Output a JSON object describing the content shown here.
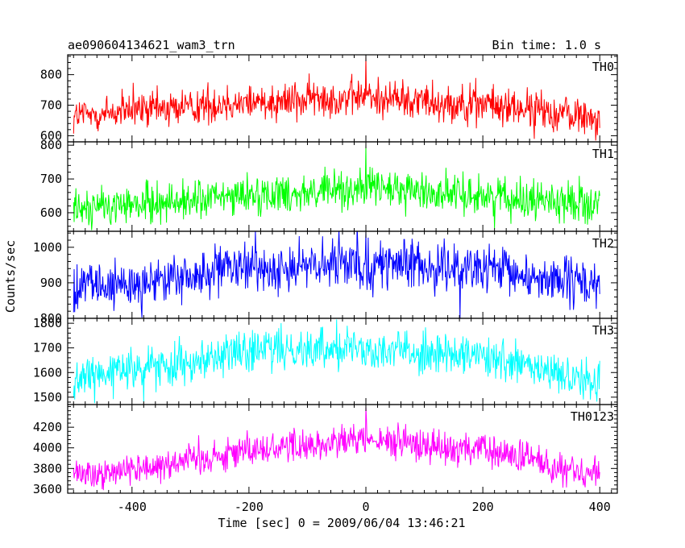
{
  "header": {
    "title": "ae090604134621_wam3_trn",
    "bin_time": "Bin time: 1.0 s"
  },
  "chart_data": {
    "type": "line",
    "xlabel": "Time [sec] 0 = 2009/06/04 13:46:21",
    "ylabel": "Counts/sec",
    "xlim": [
      -510,
      430
    ],
    "x_ticks": [
      -400,
      -200,
      0,
      200,
      400
    ],
    "x_range": [
      -500,
      400
    ],
    "bin_time_s": 1.0,
    "panels": [
      {
        "name": "TH0",
        "color": "#ff0000",
        "ylim": [
          580,
          865
        ],
        "y_ticks": [
          600,
          700,
          800
        ],
        "trend": [
          {
            "x": -500,
            "y": 665
          },
          {
            "x": -400,
            "y": 680
          },
          {
            "x": -200,
            "y": 712
          },
          {
            "x": 0,
            "y": 728
          },
          {
            "x": 200,
            "y": 702
          },
          {
            "x": 400,
            "y": 660
          }
        ],
        "noise_amplitude": 42,
        "peak": {
          "x": 0,
          "y": 860
        }
      },
      {
        "name": "TH1",
        "color": "#00ff00",
        "ylim": [
          545,
          810
        ],
        "y_ticks": [
          600,
          700,
          800
        ],
        "trend": [
          {
            "x": -500,
            "y": 612
          },
          {
            "x": -400,
            "y": 622
          },
          {
            "x": -200,
            "y": 652
          },
          {
            "x": 0,
            "y": 672
          },
          {
            "x": 200,
            "y": 652
          },
          {
            "x": 400,
            "y": 625
          }
        ],
        "noise_amplitude": 38,
        "peak": {
          "x": 0,
          "y": 800
        }
      },
      {
        "name": "TH2",
        "color": "#0000ff",
        "ylim": [
          800,
          1045
        ],
        "y_ticks": [
          800,
          900,
          1000
        ],
        "trend": [
          {
            "x": -500,
            "y": 880
          },
          {
            "x": -400,
            "y": 895
          },
          {
            "x": -200,
            "y": 940
          },
          {
            "x": 0,
            "y": 955
          },
          {
            "x": 200,
            "y": 935
          },
          {
            "x": 400,
            "y": 890
          }
        ],
        "noise_amplitude": 45,
        "peak": {
          "x": 0,
          "y": 1045
        }
      },
      {
        "name": "TH3",
        "color": "#00ffff",
        "ylim": [
          1470,
          1820
        ],
        "y_ticks": [
          1500,
          1600,
          1700,
          1800
        ],
        "trend": [
          {
            "x": -500,
            "y": 1570
          },
          {
            "x": -400,
            "y": 1610
          },
          {
            "x": -200,
            "y": 1690
          },
          {
            "x": 0,
            "y": 1705
          },
          {
            "x": 200,
            "y": 1660
          },
          {
            "x": 400,
            "y": 1560
          }
        ],
        "noise_amplitude": 55,
        "peak": {
          "x": -50,
          "y": 1815
        }
      },
      {
        "name": "TH0123",
        "color": "#ff00ff",
        "ylim": [
          3560,
          4420
        ],
        "y_ticks": [
          3600,
          3800,
          4000,
          4200
        ],
        "trend": [
          {
            "x": -500,
            "y": 3740
          },
          {
            "x": -400,
            "y": 3800
          },
          {
            "x": -200,
            "y": 3980
          },
          {
            "x": 0,
            "y": 4080
          },
          {
            "x": 200,
            "y": 3980
          },
          {
            "x": 400,
            "y": 3740
          }
        ],
        "noise_amplitude": 110,
        "peak": {
          "x": 0,
          "y": 4400
        }
      }
    ]
  }
}
